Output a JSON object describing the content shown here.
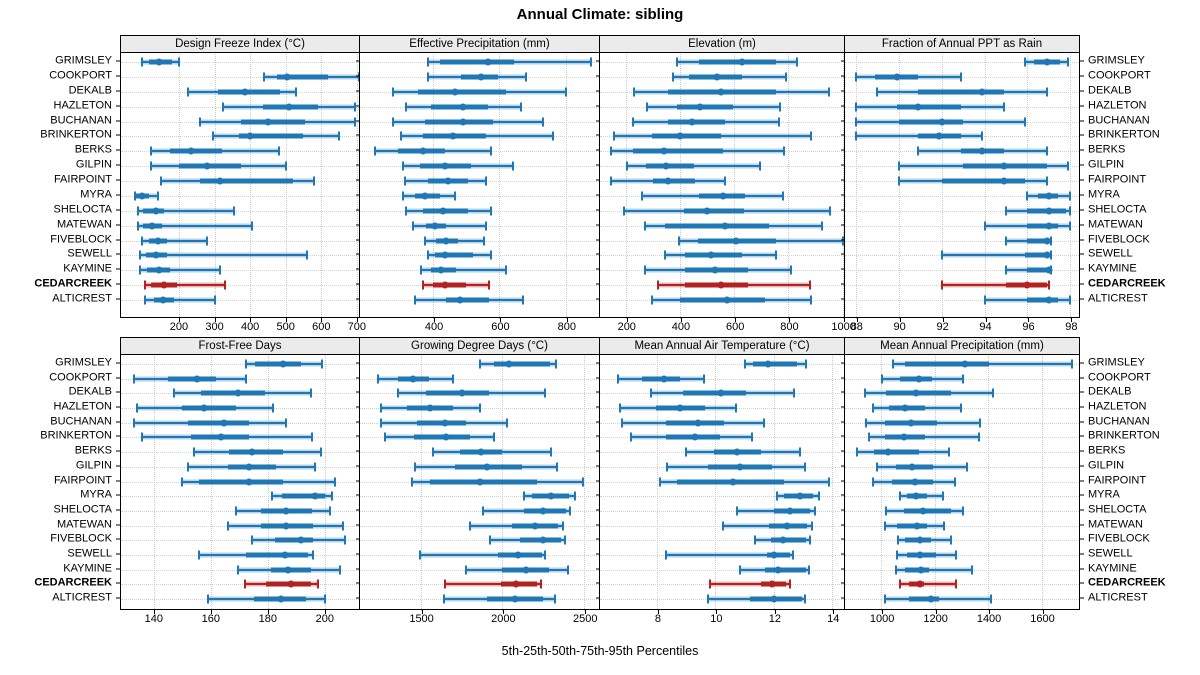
{
  "title": "Annual Climate: sibling",
  "axis_caption": "5th-25th-50th-75th-95th Percentiles",
  "colors": {
    "bar_blue": "#1f77b4",
    "highlight_red": "#b22222",
    "header_bg": "#ebebeb",
    "grid": "#c9c9c9",
    "border": "#000000"
  },
  "sites": [
    "GRIMSLEY",
    "COOKPORT",
    "DEKALB",
    "HAZLETON",
    "BUCHANAN",
    "BRINKERTON",
    "BERKS",
    "GILPIN",
    "FAIRPOINT",
    "MYRA",
    "SHELOCTA",
    "MATEWAN",
    "FIVEBLOCK",
    "SEWELL",
    "KAYMINE",
    "CEDARCREEK",
    "ALTICREST"
  ],
  "highlight_site": "CEDARCREEK",
  "chart_data": {
    "type": "scatter",
    "subtype": "trellis-percentile-dotplot",
    "percentiles": [
      "5th",
      "25th",
      "50th",
      "75th",
      "95th"
    ],
    "categories": [
      "GRIMSLEY",
      "COOKPORT",
      "DEKALB",
      "HAZLETON",
      "BUCHANAN",
      "BRINKERTON",
      "BERKS",
      "GILPIN",
      "FAIRPOINT",
      "MYRA",
      "SHELOCTA",
      "MATEWAN",
      "FIVEBLOCK",
      "SEWELL",
      "KAYMINE",
      "CEDARCREEK",
      "ALTICREST"
    ],
    "legend_position": "none",
    "grid": "dotted",
    "panels": [
      {
        "slug": "design-freeze-index",
        "title": "Design Freeze Index (°C)",
        "xlim": [
          37,
          706
        ],
        "ticks": [
          200,
          300,
          400,
          500,
          600,
          700
        ],
        "rows": [
          [
            95,
            115,
            145,
            180,
            200
          ],
          [
            440,
            475,
            505,
            620,
            705
          ],
          [
            225,
            310,
            385,
            485,
            530
          ],
          [
            325,
            435,
            510,
            590,
            695
          ],
          [
            260,
            375,
            450,
            555,
            695
          ],
          [
            295,
            370,
            400,
            550,
            650
          ],
          [
            120,
            175,
            235,
            320,
            480
          ],
          [
            120,
            200,
            280,
            375,
            500
          ],
          [
            150,
            260,
            315,
            520,
            580
          ],
          [
            75,
            80,
            97,
            115,
            140
          ],
          [
            85,
            100,
            135,
            158,
            355
          ],
          [
            85,
            100,
            125,
            153,
            405
          ],
          [
            95,
            115,
            140,
            167,
            280
          ],
          [
            90,
            107,
            135,
            167,
            560
          ],
          [
            90,
            110,
            145,
            175,
            315
          ],
          [
            105,
            120,
            158,
            195,
            330
          ],
          [
            105,
            130,
            155,
            185,
            300
          ]
        ]
      },
      {
        "slug": "effective-precipitation",
        "title": "Effective Precipitation (mm)",
        "xlim": [
          180,
          900
        ],
        "ticks": [
          400,
          600,
          800
        ],
        "rows": [
          [
            385,
            420,
            565,
            645,
            875
          ],
          [
            385,
            485,
            545,
            595,
            680
          ],
          [
            280,
            355,
            465,
            620,
            800
          ],
          [
            320,
            395,
            490,
            565,
            665
          ],
          [
            280,
            375,
            490,
            580,
            730
          ],
          [
            305,
            370,
            460,
            560,
            760
          ],
          [
            225,
            295,
            370,
            435,
            575
          ],
          [
            310,
            360,
            435,
            515,
            640
          ],
          [
            315,
            385,
            445,
            505,
            560
          ],
          [
            310,
            345,
            375,
            420,
            465
          ],
          [
            320,
            370,
            430,
            505,
            575
          ],
          [
            340,
            380,
            405,
            440,
            560
          ],
          [
            375,
            410,
            440,
            475,
            555
          ],
          [
            385,
            405,
            435,
            520,
            575
          ],
          [
            365,
            395,
            425,
            470,
            620
          ],
          [
            370,
            400,
            435,
            500,
            570
          ],
          [
            345,
            440,
            480,
            570,
            670
          ]
        ]
      },
      {
        "slug": "elevation",
        "title": "Elevation (m)",
        "xlim": [
          105,
          1005
        ],
        "ticks": [
          200,
          400,
          600,
          800,
          1000
        ],
        "rows": [
          [
            390,
            470,
            630,
            755,
            830
          ],
          [
            375,
            435,
            535,
            630,
            790
          ],
          [
            230,
            355,
            550,
            755,
            950
          ],
          [
            280,
            390,
            475,
            595,
            770
          ],
          [
            225,
            355,
            445,
            565,
            765
          ],
          [
            155,
            295,
            400,
            550,
            885
          ],
          [
            145,
            225,
            340,
            560,
            785
          ],
          [
            205,
            275,
            350,
            450,
            695
          ],
          [
            145,
            300,
            355,
            455,
            565
          ],
          [
            260,
            470,
            560,
            640,
            780
          ],
          [
            195,
            415,
            500,
            635,
            955
          ],
          [
            270,
            345,
            565,
            730,
            925
          ],
          [
            395,
            465,
            605,
            755,
            1000
          ],
          [
            345,
            420,
            515,
            630,
            755
          ],
          [
            270,
            420,
            530,
            650,
            810
          ],
          [
            320,
            420,
            550,
            650,
            880
          ],
          [
            295,
            400,
            575,
            715,
            885
          ]
        ]
      },
      {
        "slug": "fraction-ppt-rain",
        "title": "Fraction of Annual PPT as Rain",
        "xlim": [
          87.5,
          98.4
        ],
        "ticks": [
          88,
          90,
          92,
          94,
          96,
          98
        ],
        "rows": [
          [
            95.9,
            96.3,
            96.9,
            97.5,
            97.9
          ],
          [
            88.0,
            88.9,
            89.9,
            90.9,
            92.9
          ],
          [
            89.0,
            90.9,
            93.9,
            94.9,
            96.9
          ],
          [
            88.0,
            89.9,
            90.9,
            92.9,
            94.9
          ],
          [
            88.0,
            90.0,
            92.0,
            93.0,
            95.9
          ],
          [
            88.0,
            90.9,
            91.9,
            92.9,
            93.9
          ],
          [
            90.9,
            92.9,
            93.9,
            94.9,
            96.9
          ],
          [
            90.0,
            93.0,
            94.9,
            96.9,
            97.9
          ],
          [
            90.0,
            92.0,
            94.9,
            95.9,
            96.9
          ],
          [
            96.0,
            96.5,
            97.0,
            97.4,
            98.0
          ],
          [
            95.0,
            96.0,
            97.0,
            97.8,
            98.0
          ],
          [
            94.0,
            96.0,
            97.0,
            97.4,
            98.0
          ],
          [
            95.0,
            96.0,
            96.9,
            97.0,
            97.1
          ],
          [
            92.0,
            95.9,
            96.9,
            97.0,
            97.1
          ],
          [
            95.0,
            96.0,
            97.0,
            97.05,
            97.1
          ],
          [
            92.0,
            95.0,
            96.0,
            96.9,
            97.0
          ],
          [
            94.0,
            96.0,
            97.0,
            97.4,
            98.0
          ]
        ]
      },
      {
        "slug": "frost-free-days",
        "title": "Frost-Free Days",
        "xlim": [
          128.5,
          212
        ],
        "ticks": [
          140,
          160,
          180,
          200
        ],
        "rows": [
          [
            172.5,
            175.5,
            185.5,
            191.5,
            199
          ],
          [
            133,
            145,
            155,
            162,
            172.5
          ],
          [
            147,
            156.5,
            169.5,
            179,
            195
          ],
          [
            134,
            150,
            157.5,
            169,
            182
          ],
          [
            133,
            152,
            164.5,
            173.5,
            186.5
          ],
          [
            136,
            153,
            163.5,
            173.5,
            195.5
          ],
          [
            154,
            166.5,
            174.5,
            185.5,
            198.5
          ],
          [
            152,
            166,
            173.5,
            183,
            196.5
          ],
          [
            150,
            156,
            173.5,
            185.5,
            203.5
          ],
          [
            181.5,
            185,
            196.5,
            200,
            202.5
          ],
          [
            169,
            177.5,
            186.5,
            195.5,
            202
          ],
          [
            166,
            177.5,
            186.5,
            196,
            206.5
          ],
          [
            174.5,
            182.5,
            191.5,
            196,
            207
          ],
          [
            156,
            172.5,
            186,
            194,
            196
          ],
          [
            169.5,
            181,
            187,
            195,
            205.5
          ],
          [
            172,
            179.5,
            188,
            195,
            197.5
          ],
          [
            159,
            175,
            184.5,
            193.5,
            200
          ]
        ]
      },
      {
        "slug": "growing-degree-days",
        "title": "Growing Degree Days (°C)",
        "xlim": [
          1130,
          2590
        ],
        "ticks": [
          1500,
          2000,
          2500
        ],
        "rows": [
          [
            1860,
            1950,
            2040,
            2290,
            2330
          ],
          [
            1240,
            1360,
            1455,
            1550,
            1700
          ],
          [
            1365,
            1535,
            1755,
            1915,
            2260
          ],
          [
            1260,
            1415,
            1555,
            1700,
            1865
          ],
          [
            1260,
            1480,
            1650,
            1780,
            2030
          ],
          [
            1285,
            1460,
            1655,
            1800,
            1950
          ],
          [
            1575,
            1740,
            1870,
            2000,
            2295
          ],
          [
            1465,
            1710,
            1905,
            2120,
            2335
          ],
          [
            1450,
            1560,
            1860,
            2210,
            2495
          ],
          [
            2130,
            2180,
            2295,
            2405,
            2445
          ],
          [
            1880,
            2130,
            2250,
            2390,
            2415
          ],
          [
            1805,
            2060,
            2200,
            2340,
            2370
          ],
          [
            1925,
            2110,
            2245,
            2360,
            2380
          ],
          [
            1495,
            1970,
            2095,
            2240,
            2260
          ],
          [
            1780,
            1995,
            2145,
            2285,
            2400
          ],
          [
            1650,
            1990,
            2085,
            2210,
            2235
          ],
          [
            1645,
            1905,
            2075,
            2250,
            2320
          ]
        ]
      },
      {
        "slug": "mean-annual-air-temperature",
        "title": "Mean Annual Air Temperature (°C)",
        "xlim": [
          6.05,
          14.4
        ],
        "ticks": [
          8,
          10,
          12,
          14
        ],
        "rows": [
          [
            11.0,
            11.3,
            11.8,
            12.8,
            13.1
          ],
          [
            6.65,
            7.5,
            8.25,
            8.8,
            9.6
          ],
          [
            7.8,
            8.9,
            10.2,
            11.05,
            12.7
          ],
          [
            6.75,
            7.95,
            8.8,
            9.65,
            10.7
          ],
          [
            6.8,
            8.3,
            9.4,
            10.3,
            11.65
          ],
          [
            7.1,
            8.3,
            9.3,
            10.15,
            11.25
          ],
          [
            9.0,
            9.95,
            10.75,
            11.55,
            12.9
          ],
          [
            8.35,
            9.75,
            10.85,
            11.95,
            13.05
          ],
          [
            8.1,
            8.7,
            10.6,
            12.35,
            13.9
          ],
          [
            12.1,
            12.35,
            12.9,
            13.35,
            13.55
          ],
          [
            10.75,
            12.0,
            12.55,
            13.25,
            13.4
          ],
          [
            10.25,
            11.85,
            12.45,
            13.15,
            13.3
          ],
          [
            11.35,
            11.9,
            12.3,
            13.1,
            13.25
          ],
          [
            8.3,
            11.75,
            12.0,
            12.55,
            12.65
          ],
          [
            10.85,
            11.7,
            12.15,
            13.1,
            13.2
          ],
          [
            9.8,
            11.55,
            11.95,
            12.4,
            12.55
          ],
          [
            9.75,
            11.2,
            12.0,
            12.95,
            13.05
          ]
        ]
      },
      {
        "slug": "mean-annual-precipitation",
        "title": "Mean Annual Precipitation (mm)",
        "xlim": [
          865,
          1740
        ],
        "ticks": [
          1000,
          1200,
          1400,
          1600
        ],
        "rows": [
          [
            1045,
            1090,
            1315,
            1405,
            1715
          ],
          [
            1005,
            1070,
            1140,
            1190,
            1305
          ],
          [
            940,
            1020,
            1130,
            1260,
            1420
          ],
          [
            970,
            1030,
            1090,
            1165,
            1300
          ],
          [
            945,
            1015,
            1110,
            1210,
            1370
          ],
          [
            955,
            1015,
            1085,
            1165,
            1365
          ],
          [
            910,
            975,
            1025,
            1140,
            1255
          ],
          [
            985,
            1055,
            1115,
            1195,
            1320
          ],
          [
            970,
            1040,
            1125,
            1195,
            1275
          ],
          [
            1070,
            1095,
            1130,
            1170,
            1230
          ],
          [
            1020,
            1085,
            1155,
            1260,
            1305
          ],
          [
            1015,
            1060,
            1135,
            1170,
            1235
          ],
          [
            1065,
            1090,
            1145,
            1185,
            1260
          ],
          [
            1060,
            1095,
            1145,
            1205,
            1280
          ],
          [
            1055,
            1090,
            1150,
            1180,
            1340
          ],
          [
            1070,
            1105,
            1145,
            1160,
            1280
          ],
          [
            1015,
            1105,
            1185,
            1215,
            1410
          ]
        ]
      }
    ]
  }
}
